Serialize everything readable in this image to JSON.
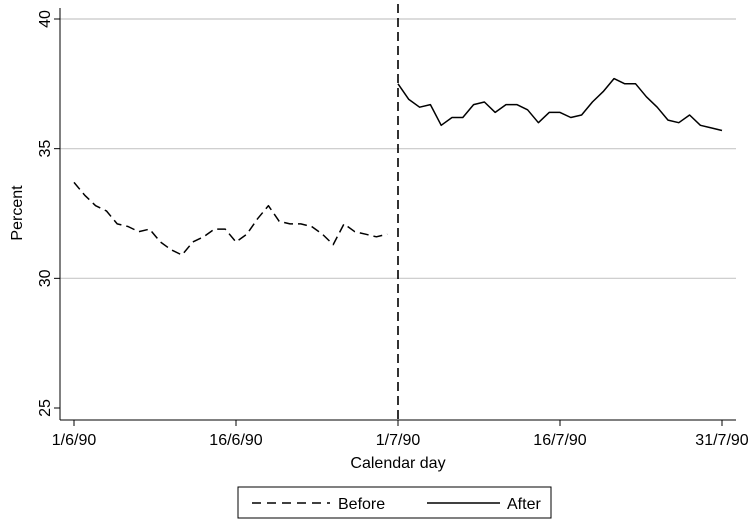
{
  "chart_data": {
    "type": "line",
    "xlabel": "Calendar day",
    "ylabel": "Percent",
    "xlim": [
      "1990-06-01",
      "1990-07-31"
    ],
    "ylim": [
      25,
      40
    ],
    "x_ticks": [
      "1990-06-01",
      "1990-06-16",
      "1990-07-01",
      "1990-07-16",
      "1990-07-31"
    ],
    "x_tick_labels": [
      "1/6/90",
      "16/6/90",
      "1/7/90",
      "16/7/90",
      "31/7/90"
    ],
    "y_ticks": [
      25,
      30,
      35,
      40
    ],
    "y_tick_labels": [
      "25",
      "30",
      "35",
      "40"
    ],
    "grid": "horizontal",
    "reference_line": {
      "x": "1990-07-01",
      "style": "dashed"
    },
    "legend": {
      "position": "bottom",
      "entries": [
        {
          "label": "Before",
          "style": "dashed"
        },
        {
          "label": "After",
          "style": "solid"
        }
      ]
    },
    "series": [
      {
        "name": "Before",
        "style": "dashed",
        "x": [
          "1990-06-01",
          "1990-06-02",
          "1990-06-03",
          "1990-06-04",
          "1990-06-05",
          "1990-06-06",
          "1990-06-07",
          "1990-06-08",
          "1990-06-09",
          "1990-06-10",
          "1990-06-11",
          "1990-06-12",
          "1990-06-13",
          "1990-06-14",
          "1990-06-15",
          "1990-06-16",
          "1990-06-17",
          "1990-06-18",
          "1990-06-19",
          "1990-06-20",
          "1990-06-21",
          "1990-06-22",
          "1990-06-23",
          "1990-06-24",
          "1990-06-25",
          "1990-06-26",
          "1990-06-27",
          "1990-06-28",
          "1990-06-29",
          "1990-06-30"
        ],
        "values": [
          33.7,
          33.2,
          32.8,
          32.6,
          32.1,
          32.0,
          31.8,
          31.9,
          31.4,
          31.1,
          30.9,
          31.4,
          31.6,
          31.9,
          31.9,
          31.4,
          31.7,
          32.3,
          32.8,
          32.2,
          32.1,
          32.1,
          32.0,
          31.7,
          31.3,
          32.1,
          31.8,
          31.7,
          31.6,
          31.7
        ]
      },
      {
        "name": "After",
        "style": "solid",
        "x": [
          "1990-07-01",
          "1990-07-02",
          "1990-07-03",
          "1990-07-04",
          "1990-07-05",
          "1990-07-06",
          "1990-07-07",
          "1990-07-08",
          "1990-07-09",
          "1990-07-10",
          "1990-07-11",
          "1990-07-12",
          "1990-07-13",
          "1990-07-14",
          "1990-07-15",
          "1990-07-16",
          "1990-07-17",
          "1990-07-18",
          "1990-07-19",
          "1990-07-20",
          "1990-07-21",
          "1990-07-22",
          "1990-07-23",
          "1990-07-24",
          "1990-07-25",
          "1990-07-26",
          "1990-07-27",
          "1990-07-28",
          "1990-07-29",
          "1990-07-30",
          "1990-07-31"
        ],
        "values": [
          37.5,
          36.9,
          36.6,
          36.7,
          35.9,
          36.2,
          36.2,
          36.7,
          36.8,
          36.4,
          36.7,
          36.7,
          36.5,
          36.0,
          36.4,
          36.4,
          36.2,
          36.3,
          36.8,
          37.2,
          37.7,
          37.5,
          37.5,
          37.0,
          36.6,
          36.1,
          36.0,
          36.3,
          35.9,
          35.8,
          35.7
        ]
      }
    ]
  }
}
